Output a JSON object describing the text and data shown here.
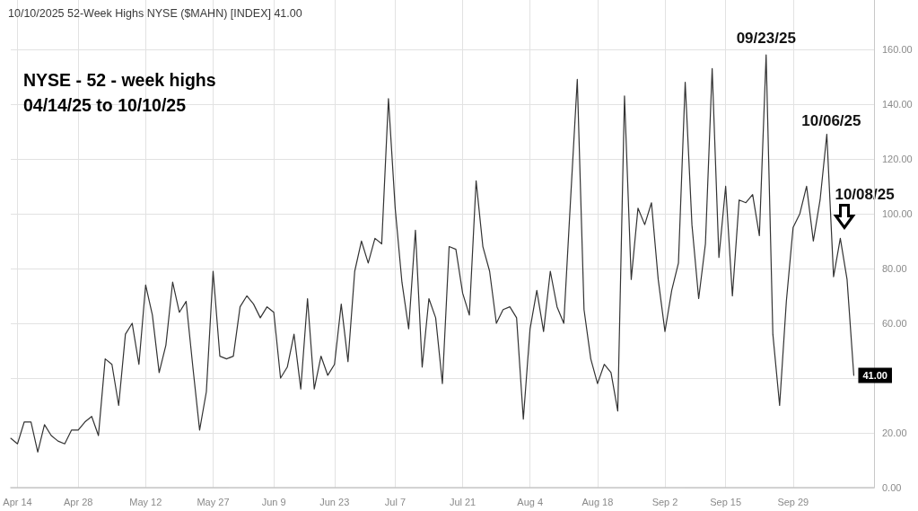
{
  "chart_data": {
    "type": "line",
    "title": "10/10/2025 52-Week Highs NYSE ($MAHN) [INDEX] 41.00",
    "subtitle": "NYSE - 52 - week highs\n04/14/25 to 10/10/25",
    "categories": [
      null,
      "Apr 14",
      null,
      null,
      null,
      null,
      null,
      null,
      null,
      null,
      "Apr 28",
      null,
      null,
      null,
      null,
      null,
      null,
      null,
      null,
      null,
      "May 12",
      null,
      null,
      null,
      null,
      null,
      null,
      null,
      null,
      null,
      "May 27",
      null,
      null,
      null,
      null,
      null,
      null,
      null,
      null,
      "Jun 9",
      null,
      null,
      null,
      null,
      null,
      null,
      null,
      null,
      "Jun 23",
      null,
      null,
      null,
      null,
      null,
      null,
      null,
      null,
      "Jul 7",
      null,
      null,
      null,
      null,
      null,
      null,
      null,
      null,
      null,
      "Jul 21",
      null,
      null,
      null,
      null,
      null,
      null,
      null,
      null,
      null,
      "Aug 4",
      null,
      null,
      null,
      null,
      null,
      null,
      null,
      null,
      null,
      "Aug 18",
      null,
      null,
      null,
      null,
      null,
      null,
      null,
      null,
      null,
      "Sep 2",
      null,
      null,
      null,
      null,
      null,
      null,
      null,
      null,
      "Sep 15",
      null,
      null,
      null,
      null,
      null,
      null,
      null,
      null,
      null,
      "Sep 29",
      null,
      null,
      null,
      null,
      null,
      null,
      null,
      null,
      null
    ],
    "values": [
      18,
      16,
      24,
      24,
      13,
      23,
      19,
      17,
      16,
      21,
      21,
      24,
      26,
      19,
      47,
      45,
      30,
      56,
      60,
      45,
      74,
      63,
      42,
      52,
      75,
      64,
      68,
      44,
      21,
      35,
      79,
      48,
      47,
      48,
      66,
      70,
      67,
      62,
      66,
      64,
      40,
      44,
      56,
      36,
      69,
      36,
      48,
      41,
      45,
      67,
      46,
      79,
      90,
      82,
      91,
      89,
      142,
      102,
      75,
      58,
      94,
      44,
      69,
      62,
      38,
      88,
      87,
      71,
      63,
      112,
      88,
      79,
      60,
      65,
      66,
      62,
      25,
      58,
      72,
      57,
      79,
      66,
      60,
      105,
      149,
      65,
      47,
      38,
      45,
      42,
      28,
      143,
      76,
      102,
      96,
      104,
      76,
      57,
      72,
      82,
      148,
      96,
      69,
      89,
      153,
      84,
      110,
      70,
      105,
      104,
      107,
      92,
      158,
      56,
      30,
      68,
      95,
      100,
      110,
      90,
      105,
      129,
      77,
      91,
      76,
      41
    ],
    "value_labels": [
      null,
      null,
      null,
      null,
      null,
      null,
      null,
      null,
      null,
      null,
      null,
      null,
      null,
      null,
      null,
      null,
      null,
      null,
      null,
      null,
      null,
      null,
      null,
      null,
      null,
      null,
      null,
      null,
      null,
      null,
      null,
      null,
      null,
      null,
      null,
      null,
      null,
      null,
      null,
      null,
      null,
      null,
      null,
      null,
      null,
      null,
      null,
      null,
      null,
      null,
      null,
      null,
      null,
      null,
      null,
      null,
      null,
      null,
      null,
      null,
      null,
      null,
      null,
      null,
      null,
      null,
      null,
      null,
      null,
      null,
      null,
      null,
      null,
      null,
      null,
      null,
      null,
      null,
      null,
      null,
      null,
      null,
      null,
      null,
      null,
      null,
      null,
      null,
      null,
      null,
      null,
      null,
      null,
      null,
      null,
      null,
      null,
      null,
      null,
      null,
      null,
      null,
      null,
      null,
      null,
      null,
      null,
      null,
      null,
      null,
      null,
      null,
      null,
      null,
      null,
      null,
      null,
      null,
      null,
      null,
      null,
      null,
      null,
      null,
      null,
      "41.00"
    ],
    "color": "#333333",
    "ylim": [
      0,
      178
    ],
    "yticks": [
      {
        "value": 0,
        "label": "0.00"
      },
      {
        "value": 20,
        "label": "20.00"
      },
      {
        "value": 40,
        "label": null
      },
      {
        "value": 60,
        "label": "60.00"
      },
      {
        "value": 80,
        "label": "80.00"
      },
      {
        "value": 100,
        "label": "100.00"
      },
      {
        "value": 120,
        "label": "120.00"
      },
      {
        "value": 140,
        "label": "140.00"
      },
      {
        "value": 160,
        "label": "160.00"
      }
    ],
    "grid": true,
    "annotations": [
      {
        "text": "09/23/25",
        "y": 158
      },
      {
        "text": "10/06/25",
        "y": 129
      },
      "10/08/25"
    ]
  }
}
